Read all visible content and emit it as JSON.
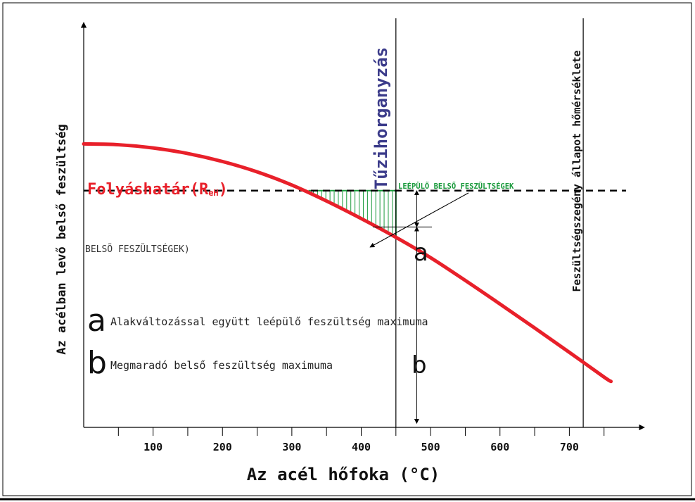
{
  "chart_data": {
    "type": "line",
    "xlabel": "Az acél hőfoka (°C)",
    "ylabel": "Az acélban levő belső feszültség",
    "xlim": [
      0,
      800
    ],
    "x_ticks": [
      100,
      200,
      300,
      400,
      500,
      600,
      700
    ],
    "x_minor_ticks": [
      50,
      150,
      250,
      350,
      450,
      550,
      650,
      750
    ],
    "ylim": [
      0,
      100
    ],
    "grid": false,
    "colors": {
      "yield_curve": "#e8202a",
      "hatch": "#1a9a3c",
      "vertical_title": "#3b3b8a",
      "axis": "#000000"
    },
    "series": [
      {
        "name": "Folyáshatár",
        "subscript": "eH",
        "paren_open": "(R",
        "paren_close": ")",
        "x": [
          0,
          50,
          100,
          150,
          200,
          250,
          300,
          350,
          400,
          450,
          500,
          550,
          600,
          650,
          700,
          750,
          760
        ],
        "y": [
          71,
          70.8,
          70,
          68.6,
          66.6,
          64,
          60.7,
          56.7,
          52.3,
          47.6,
          42.5,
          36.8,
          30.9,
          24.9,
          18.8,
          12.6,
          11.5
        ]
      }
    ],
    "reference_lines": [
      {
        "type": "horizontal",
        "y": 59.3,
        "style": "dashed",
        "label": "BELSÕ FESZÜLTSÉGEK)"
      },
      {
        "type": "vertical",
        "x": 450,
        "label": "Tűzihorganyzás"
      },
      {
        "type": "vertical",
        "x": 720,
        "label": "Feszültségszegény állapot hőmérséklete"
      }
    ],
    "hatched_region": {
      "x_from": 325,
      "x_to": 450,
      "label": "LEÉPÜLŐ BELSŐ FESZÜLTSÉGEK"
    },
    "dimensions": [
      {
        "letter": "a",
        "x": 480,
        "y_from": 59.3,
        "y_to": 50.2
      },
      {
        "letter": "b",
        "x": 480,
        "y_from": 50.2,
        "y_to": 1.0
      }
    ],
    "legend": [
      {
        "letter": "a",
        "text": "Alakváltozással együtt leépülő feszültség maximuma"
      },
      {
        "letter": "b",
        "text": "Megmaradó belső feszültség maximuma"
      }
    ]
  }
}
